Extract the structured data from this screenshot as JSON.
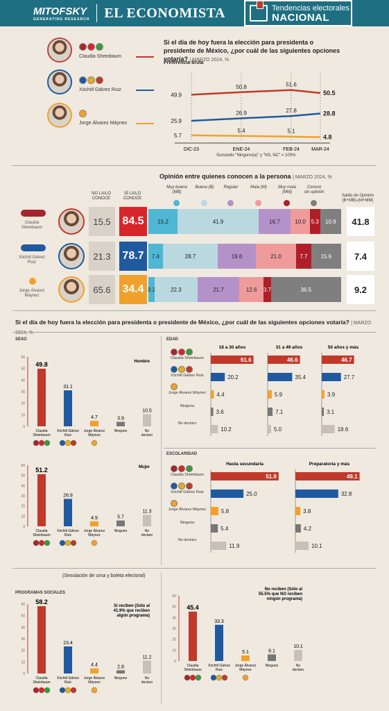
{
  "header": {
    "brand1": "MITOFSKY",
    "brand1_sub": "GENERATING RESEARCH",
    "brand2": "EL ECONOMISTA",
    "section_top": "Tendencias electorales",
    "section_bottom": "NACIONAL"
  },
  "candidates": [
    {
      "name": "Claudia Sheinbaum",
      "name_l1": "Claudia",
      "name_l2": "Sheinbaum",
      "color": "#c0392b"
    },
    {
      "name": "Xóchitl Gálvez Ruiz",
      "name_l1": "Xóchitl Gálvez",
      "name_l2": "Ruiz",
      "color": "#1f5aa0"
    },
    {
      "name": "Jorge Álvarez Máynez",
      "name_l1": "Jorge Álvarez",
      "name_l2": "Máynez",
      "color": "#f0a12c"
    }
  ],
  "trend": {
    "question": "Si el día de hoy fuera la elección para presidenta o presidente de México, ¿por cuál de las siguientes opciones votaría?",
    "date": "MARZO 2024, %",
    "subtitle": "Preferencia bruta",
    "note": "Sumando \"Ninguno(a)\" y \"NS, NC\" = 100%",
    "categories": [
      "DIC-23",
      "ENE-24",
      "FEB-24",
      "MAR-24"
    ],
    "series": [
      {
        "name": "Claudia Sheinbaum",
        "values": [
          49.9,
          50.8,
          51.6,
          50.5
        ],
        "labels": [
          "49.9",
          "50.8",
          "51.6",
          "50.5"
        ],
        "color": "#c0392b"
      },
      {
        "name": "Xóchitl Gálvez Ruiz",
        "values": [
          25.9,
          26.9,
          27.8,
          28.8
        ],
        "labels": [
          "25.9",
          "26.9",
          "27.8",
          "28.8"
        ],
        "color": "#1f5aa0"
      },
      {
        "name": "Jorge Álvarez Máynez",
        "values": [
          5.7,
          5.4,
          5.1,
          4.8
        ],
        "labels": [
          "5.7",
          "5.4",
          "5.1",
          "4.8"
        ],
        "color": "#f0a12c"
      }
    ]
  },
  "opinion": {
    "title": "Opinión entre quienes conocen a la persona",
    "date": "MARZO 2024, %",
    "col_no": "NO LA/LO CONOCE",
    "col_si": "SÍ LA/LO CONOCE",
    "segments": [
      {
        "label": "Muy buena (MB)",
        "color": "#4fb7d3"
      },
      {
        "label": "Buena (B)",
        "color": "#b9d8e0"
      },
      {
        "label": "Regular",
        "color": "#b591c9"
      },
      {
        "label": "Mala (M)",
        "color": "#ef9b9b"
      },
      {
        "label": "Muy mala (MM)",
        "color": "#b01e2a"
      },
      {
        "label": "Conoce sin opinión",
        "color": "#7f7f7f"
      }
    ],
    "saldo_label": "Saldo de Opinión (B+MB)-(M+MM)",
    "rows": [
      {
        "no": "15.5",
        "si": "84.5",
        "si_color": "#d6262a",
        "vals": [
          15.2,
          41.9,
          16.7,
          10.0,
          5.3,
          10.9
        ],
        "labels": [
          "15.2",
          "41.9",
          "16.7",
          "10.0",
          "5.3",
          "10.9"
        ],
        "saldo": "41.8"
      },
      {
        "no": "21.3",
        "si": "78.7",
        "si_color": "#1f5aa0",
        "vals": [
          7.4,
          28.7,
          19.6,
          21.0,
          7.7,
          15.6
        ],
        "labels": [
          "7.4",
          "28.7",
          "19.6",
          "21.0",
          "7.7",
          "15.6"
        ],
        "saldo": "7.4"
      },
      {
        "no": "65.6",
        "si": "34.4",
        "si_color": "#f0a12c",
        "vals": [
          3.2,
          22.3,
          21.7,
          12.6,
          3.7,
          36.5
        ],
        "labels": [
          "3.2",
          "22.3",
          "21.7",
          "12.6",
          "3.7",
          "36.5"
        ],
        "saldo": "9.2"
      }
    ]
  },
  "demo_question": "Si el día de hoy fuera la elección para presidenta o presidente de México, ¿por cuál de las siguientes opciones votaría?",
  "demo_date": "MARZO 2024, %",
  "options": [
    "Claudia Sheinbaum",
    "Xóchitl Gálvez Ruiz",
    "Jorge Álvarez Máynez",
    "Ninguno",
    "No declaro"
  ],
  "option_colors": [
    "#c0392b",
    "#1f5aa0",
    "#f0a12c",
    "#777777",
    "#c8c0b8"
  ],
  "chart_data": [
    {
      "type": "bar",
      "group": "SEXO",
      "title": "Hombre",
      "categories": [
        "Claudia Sheinbaum",
        "Xóchitl Gálvez Ruiz",
        "Jorge Álvarez Máynez",
        "Ninguno",
        "No declaro"
      ],
      "values": [
        49.8,
        31.1,
        4.7,
        3.9,
        10.5
      ],
      "labels": [
        "49.8",
        "31.1",
        "4.7",
        "3.9",
        "10.5"
      ],
      "ylim": [
        0,
        60
      ],
      "ticks": [
        "0",
        "10",
        "20",
        "30",
        "40",
        "50",
        "60"
      ]
    },
    {
      "type": "bar",
      "title": "Mujer",
      "categories": [
        "Claudia Sheinbaum",
        "Xóchitl Gálvez Ruiz",
        "Jorge Álvarez Máynez",
        "Ninguno",
        "No declaro"
      ],
      "values": [
        51.2,
        26.9,
        4.9,
        5.7,
        11.3
      ],
      "labels": [
        "51.2",
        "26.9",
        "4.9",
        "5.7",
        "11.3"
      ],
      "ylim": [
        0,
        60
      ],
      "ticks": [
        "0",
        "10",
        "20",
        "30",
        "40",
        "50",
        "60"
      ]
    },
    {
      "type": "bar",
      "group": "PROGRAMAS SOCIALES",
      "title": "Sí reciben (Sólo al 41.9% que reciben algún programa)",
      "categories": [
        "Claudia Sheinbaum",
        "Xóchitl Gálvez Ruiz",
        "Jorge Álvarez Máynez",
        "Ninguno",
        "No declaro"
      ],
      "values": [
        58.2,
        23.4,
        4.4,
        2.8,
        11.2
      ],
      "labels": [
        "58.2",
        "23.4",
        "4.4",
        "2.8",
        "11.2"
      ],
      "ylim": [
        0,
        60
      ],
      "ticks": [
        "0",
        "10",
        "20",
        "30",
        "40",
        "50",
        "60"
      ]
    },
    {
      "type": "bar",
      "title": "No reciben (Sólo al 55.5% que NO reciben ningún programa)",
      "categories": [
        "Claudia Sheinbaum",
        "Xóchitl Gálvez Ruiz",
        "Jorge Álvarez Máynez",
        "Ninguno",
        "No declaro"
      ],
      "values": [
        45.4,
        33.3,
        5.1,
        6.1,
        10.1
      ],
      "labels": [
        "45.4",
        "33.3",
        "5.1",
        "6.1",
        "10.1"
      ],
      "ylim": [
        0,
        60
      ],
      "ticks": [
        "0",
        "10",
        "20",
        "30",
        "40",
        "50",
        "60"
      ]
    },
    {
      "type": "bar",
      "group": "EDAD",
      "title": "18 a 30 años",
      "orientation": "horizontal",
      "categories": [
        "Claudia Sheinbaum",
        "Xóchitl Gálvez Ruiz",
        "Jorge Álvarez Máynez",
        "Ninguna",
        "No declaro"
      ],
      "values": [
        61.6,
        20.2,
        4.4,
        3.6,
        10.2
      ],
      "labels": [
        "61.6",
        "20.2",
        "4.4",
        "3.6",
        "10.2"
      ]
    },
    {
      "type": "bar",
      "title": "31 a 49 años",
      "orientation": "horizontal",
      "categories": [
        "Claudia Sheinbaum",
        "Xóchitl Gálvez Ruiz",
        "Jorge Álvarez Máynez",
        "Ninguna",
        "No declaro"
      ],
      "values": [
        46.6,
        35.4,
        5.9,
        7.1,
        5.0
      ],
      "labels": [
        "46.6",
        "35.4",
        "5.9",
        "7.1",
        "5.0"
      ]
    },
    {
      "type": "bar",
      "title": "50 años y más",
      "orientation": "horizontal",
      "categories": [
        "Claudia Sheinbaum",
        "Xóchitl Gálvez Ruiz",
        "Jorge Álvarez Máynez",
        "Ninguna",
        "No declaro"
      ],
      "values": [
        46.7,
        27.7,
        3.9,
        3.1,
        18.6
      ],
      "labels": [
        "46.7",
        "27.7",
        "3.9",
        "3.1",
        "18.6"
      ]
    },
    {
      "type": "bar",
      "group": "ESCOLARIDAD",
      "title": "Hasta secundaria",
      "orientation": "horizontal",
      "categories": [
        "Claudia Sheinbaum",
        "Xóchitl Gálvez Ruiz",
        "Jorge Álvarez Máynez",
        "Ninguna",
        "No declaro"
      ],
      "values": [
        51.9,
        25.0,
        5.8,
        5.4,
        11.9
      ],
      "labels": [
        "51.9",
        "25.0",
        "5.8",
        "5.4",
        "11.9"
      ]
    },
    {
      "type": "bar",
      "title": "Preparatoria y más",
      "orientation": "horizontal",
      "categories": [
        "Claudia Sheinbaum",
        "Xóchitl Gálvez Ruiz",
        "Jorge Álvarez Máynez",
        "Ninguna",
        "No declaro"
      ],
      "values": [
        49.1,
        32.8,
        3.8,
        4.2,
        10.1
      ],
      "labels": [
        "49.1",
        "32.8",
        "3.8",
        "4.2",
        "10.1"
      ]
    }
  ],
  "sim_note": "(Simulación de urna y boleta electoral)",
  "hbar_rows": [
    "Claudia Sheinbaum",
    "Xóchitl Gálvez Ruiz",
    "Jorge Álvarez Máynez",
    "Ninguna",
    "No declaro"
  ],
  "party_logos": {
    "morena_pt_pvem": [
      "morena",
      "PT",
      "PVEM"
    ],
    "pan_pri_prd": [
      "PAN",
      "PRI",
      "PRD"
    ],
    "mc": [
      "MC"
    ]
  }
}
